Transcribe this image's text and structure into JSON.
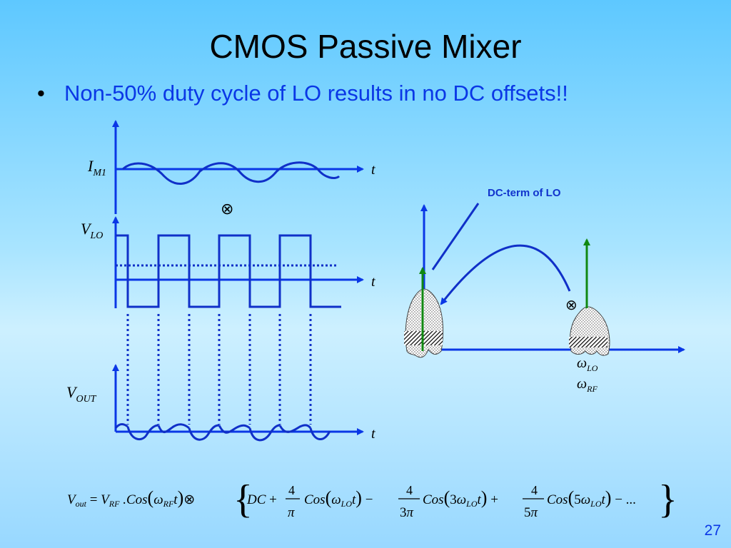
{
  "slide": {
    "title": "CMOS Passive Mixer",
    "bullet_marker": "•",
    "bullet": "Non-50% duty cycle of LO results in no DC offsets!!",
    "page_number": "27"
  },
  "time_domain": {
    "im1_label": {
      "base": "I",
      "sub": "M1"
    },
    "vlo_label": {
      "base": "V",
      "sub": "LO"
    },
    "vout_label": {
      "base": "V",
      "sub": "OUT"
    },
    "axis_label": "t",
    "multiply_symbol": "⊗"
  },
  "spectrum": {
    "annotation": "DC-term of LO",
    "multiply_symbol": "⊗",
    "omega_lo": {
      "base": "ω",
      "sub": "LO"
    },
    "omega_rf": {
      "base": "ω",
      "sub": "RF"
    }
  },
  "equation": {
    "text": "V_out = V_RF .Cos(ω_RF t) ⊗ { DC + 4/π Cos(ω_LO t) − 4/3π Cos(3ω_LO t) + 4/5π Cos(5ω_LO t) − ... }"
  },
  "colors": {
    "axis": "#0a37e6",
    "waveform": "#1030c8",
    "green_arrow": "#118811",
    "text_blue": "#0a37e6"
  }
}
